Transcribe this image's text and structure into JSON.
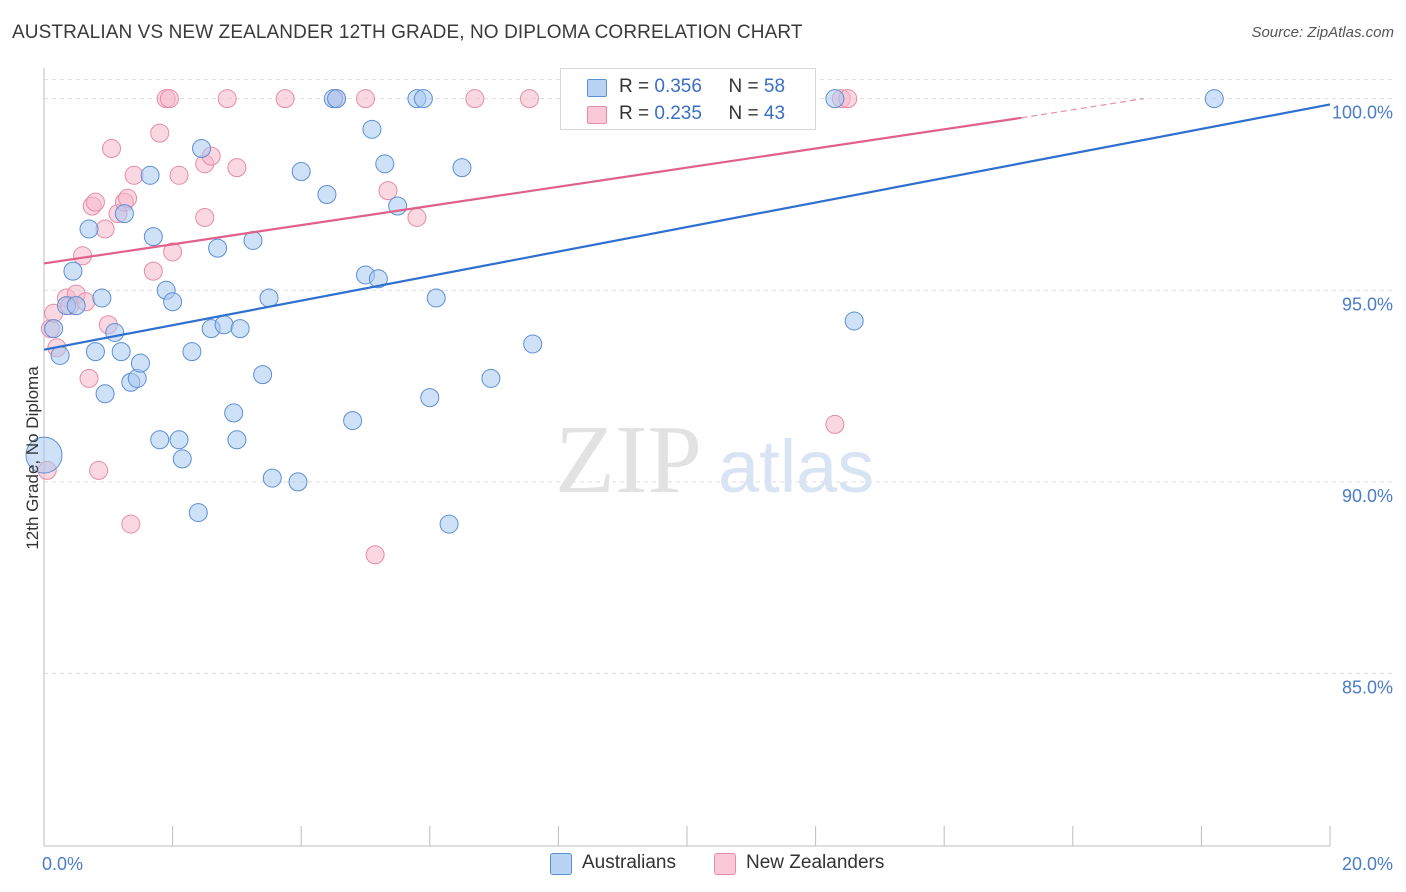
{
  "title": "AUSTRALIAN VS NEW ZEALANDER 12TH GRADE, NO DIPLOMA CORRELATION CHART",
  "source": "Source: ZipAtlas.com",
  "watermark": {
    "zip": "ZIP",
    "atlas": "atlas"
  },
  "legend": {
    "r_label": "R =",
    "n_label": "N =",
    "rows": [
      {
        "r": "0.356",
        "n": "58"
      },
      {
        "r": "0.235",
        "n": "43"
      }
    ]
  },
  "colors": {
    "blue_fill": "#a8c8f0",
    "blue_stroke": "#5b8fd6",
    "blue_line": "#2f6fd0",
    "pink_fill": "#f5b8cb",
    "pink_stroke": "#e88aa8",
    "pink_line": "#e0608a",
    "grid": "#dddddd",
    "tick_text": "#4a7cc7"
  },
  "chart_data": {
    "type": "scatter",
    "title": "AUSTRALIAN VS NEW ZEALANDER 12TH GRADE, NO DIPLOMA CORRELATION CHART",
    "xlabel": "",
    "ylabel": "12th Grade, No Diploma",
    "xlim": [
      0,
      20
    ],
    "ylim": [
      80.5,
      100.8
    ],
    "x_tick_labels": [
      "0.0%",
      "20.0%"
    ],
    "y_ticks": [
      85,
      90,
      95,
      100
    ],
    "y_tick_labels": [
      "85.0%",
      "90.0%",
      "95.0%",
      "100.0%"
    ],
    "grid": true,
    "series": [
      {
        "name": "Australians",
        "r": 0.356,
        "n": 58,
        "trend": {
          "x0": 0.0,
          "y0": 93.45,
          "x1": 20.0,
          "y1": 99.85
        },
        "points": [
          [
            0.0,
            90.7
          ],
          [
            0.15,
            94.0
          ],
          [
            0.25,
            93.3
          ],
          [
            0.35,
            94.6
          ],
          [
            0.45,
            95.5
          ],
          [
            0.5,
            94.6
          ],
          [
            0.7,
            96.6
          ],
          [
            0.8,
            93.4
          ],
          [
            0.9,
            94.8
          ],
          [
            0.95,
            92.3
          ],
          [
            1.1,
            93.9
          ],
          [
            1.2,
            93.4
          ],
          [
            1.25,
            97.0
          ],
          [
            1.35,
            92.6
          ],
          [
            1.45,
            92.7
          ],
          [
            1.5,
            93.1
          ],
          [
            1.65,
            98.0
          ],
          [
            1.7,
            96.4
          ],
          [
            1.8,
            91.1
          ],
          [
            1.9,
            95.0
          ],
          [
            2.0,
            94.7
          ],
          [
            2.1,
            91.1
          ],
          [
            2.15,
            90.6
          ],
          [
            2.3,
            93.4
          ],
          [
            2.4,
            89.2
          ],
          [
            2.45,
            98.7
          ],
          [
            2.6,
            94.0
          ],
          [
            2.7,
            96.1
          ],
          [
            2.8,
            94.1
          ],
          [
            2.95,
            91.8
          ],
          [
            3.0,
            91.1
          ],
          [
            3.05,
            94.0
          ],
          [
            3.25,
            96.3
          ],
          [
            3.4,
            92.8
          ],
          [
            3.5,
            94.8
          ],
          [
            3.55,
            90.1
          ],
          [
            3.95,
            90.0
          ],
          [
            4.0,
            98.1
          ],
          [
            4.4,
            97.5
          ],
          [
            4.5,
            100.0
          ],
          [
            4.55,
            100.0
          ],
          [
            4.8,
            91.6
          ],
          [
            5.0,
            95.4
          ],
          [
            5.1,
            99.2
          ],
          [
            5.2,
            95.3
          ],
          [
            5.3,
            98.3
          ],
          [
            5.5,
            97.2
          ],
          [
            5.8,
            100.0
          ],
          [
            5.9,
            100.0
          ],
          [
            6.0,
            92.2
          ],
          [
            6.1,
            94.8
          ],
          [
            6.3,
            88.9
          ],
          [
            6.5,
            98.2
          ],
          [
            6.95,
            92.7
          ],
          [
            7.6,
            93.6
          ],
          [
            12.3,
            100.0
          ],
          [
            12.6,
            94.2
          ],
          [
            18.2,
            100.0
          ]
        ]
      },
      {
        "name": "New Zealanders",
        "r": 0.235,
        "n": 43,
        "trend": {
          "x0": 0.0,
          "y0": 95.7,
          "x1": 15.2,
          "y1": 99.5,
          "dashed_to_x": 17.1,
          "dashed_to_y": 100.0
        },
        "points": [
          [
            0.05,
            90.3
          ],
          [
            0.1,
            94.0
          ],
          [
            0.15,
            94.4
          ],
          [
            0.2,
            93.5
          ],
          [
            0.35,
            94.8
          ],
          [
            0.4,
            94.6
          ],
          [
            0.5,
            94.9
          ],
          [
            0.6,
            95.9
          ],
          [
            0.65,
            94.7
          ],
          [
            0.7,
            92.7
          ],
          [
            0.75,
            97.2
          ],
          [
            0.8,
            97.3
          ],
          [
            0.85,
            90.3
          ],
          [
            0.95,
            96.6
          ],
          [
            1.0,
            94.1
          ],
          [
            1.05,
            98.7
          ],
          [
            1.15,
            97.0
          ],
          [
            1.25,
            97.3
          ],
          [
            1.3,
            97.4
          ],
          [
            1.35,
            88.9
          ],
          [
            1.4,
            98.0
          ],
          [
            1.7,
            95.5
          ],
          [
            1.8,
            99.1
          ],
          [
            1.9,
            100.0
          ],
          [
            1.95,
            100.0
          ],
          [
            2.0,
            96.0
          ],
          [
            2.1,
            98.0
          ],
          [
            2.5,
            98.3
          ],
          [
            2.5,
            96.9
          ],
          [
            2.6,
            98.5
          ],
          [
            2.85,
            100.0
          ],
          [
            3.0,
            98.2
          ],
          [
            3.75,
            100.0
          ],
          [
            4.55,
            100.0
          ],
          [
            5.0,
            100.0
          ],
          [
            5.15,
            88.1
          ],
          [
            5.35,
            97.6
          ],
          [
            5.8,
            96.9
          ],
          [
            6.7,
            100.0
          ],
          [
            7.55,
            100.0
          ],
          [
            12.4,
            100.0
          ],
          [
            12.5,
            100.0
          ],
          [
            12.3,
            91.5
          ]
        ]
      }
    ]
  },
  "bottom_legend": [
    {
      "label": "Australians"
    },
    {
      "label": "New Zealanders"
    }
  ]
}
